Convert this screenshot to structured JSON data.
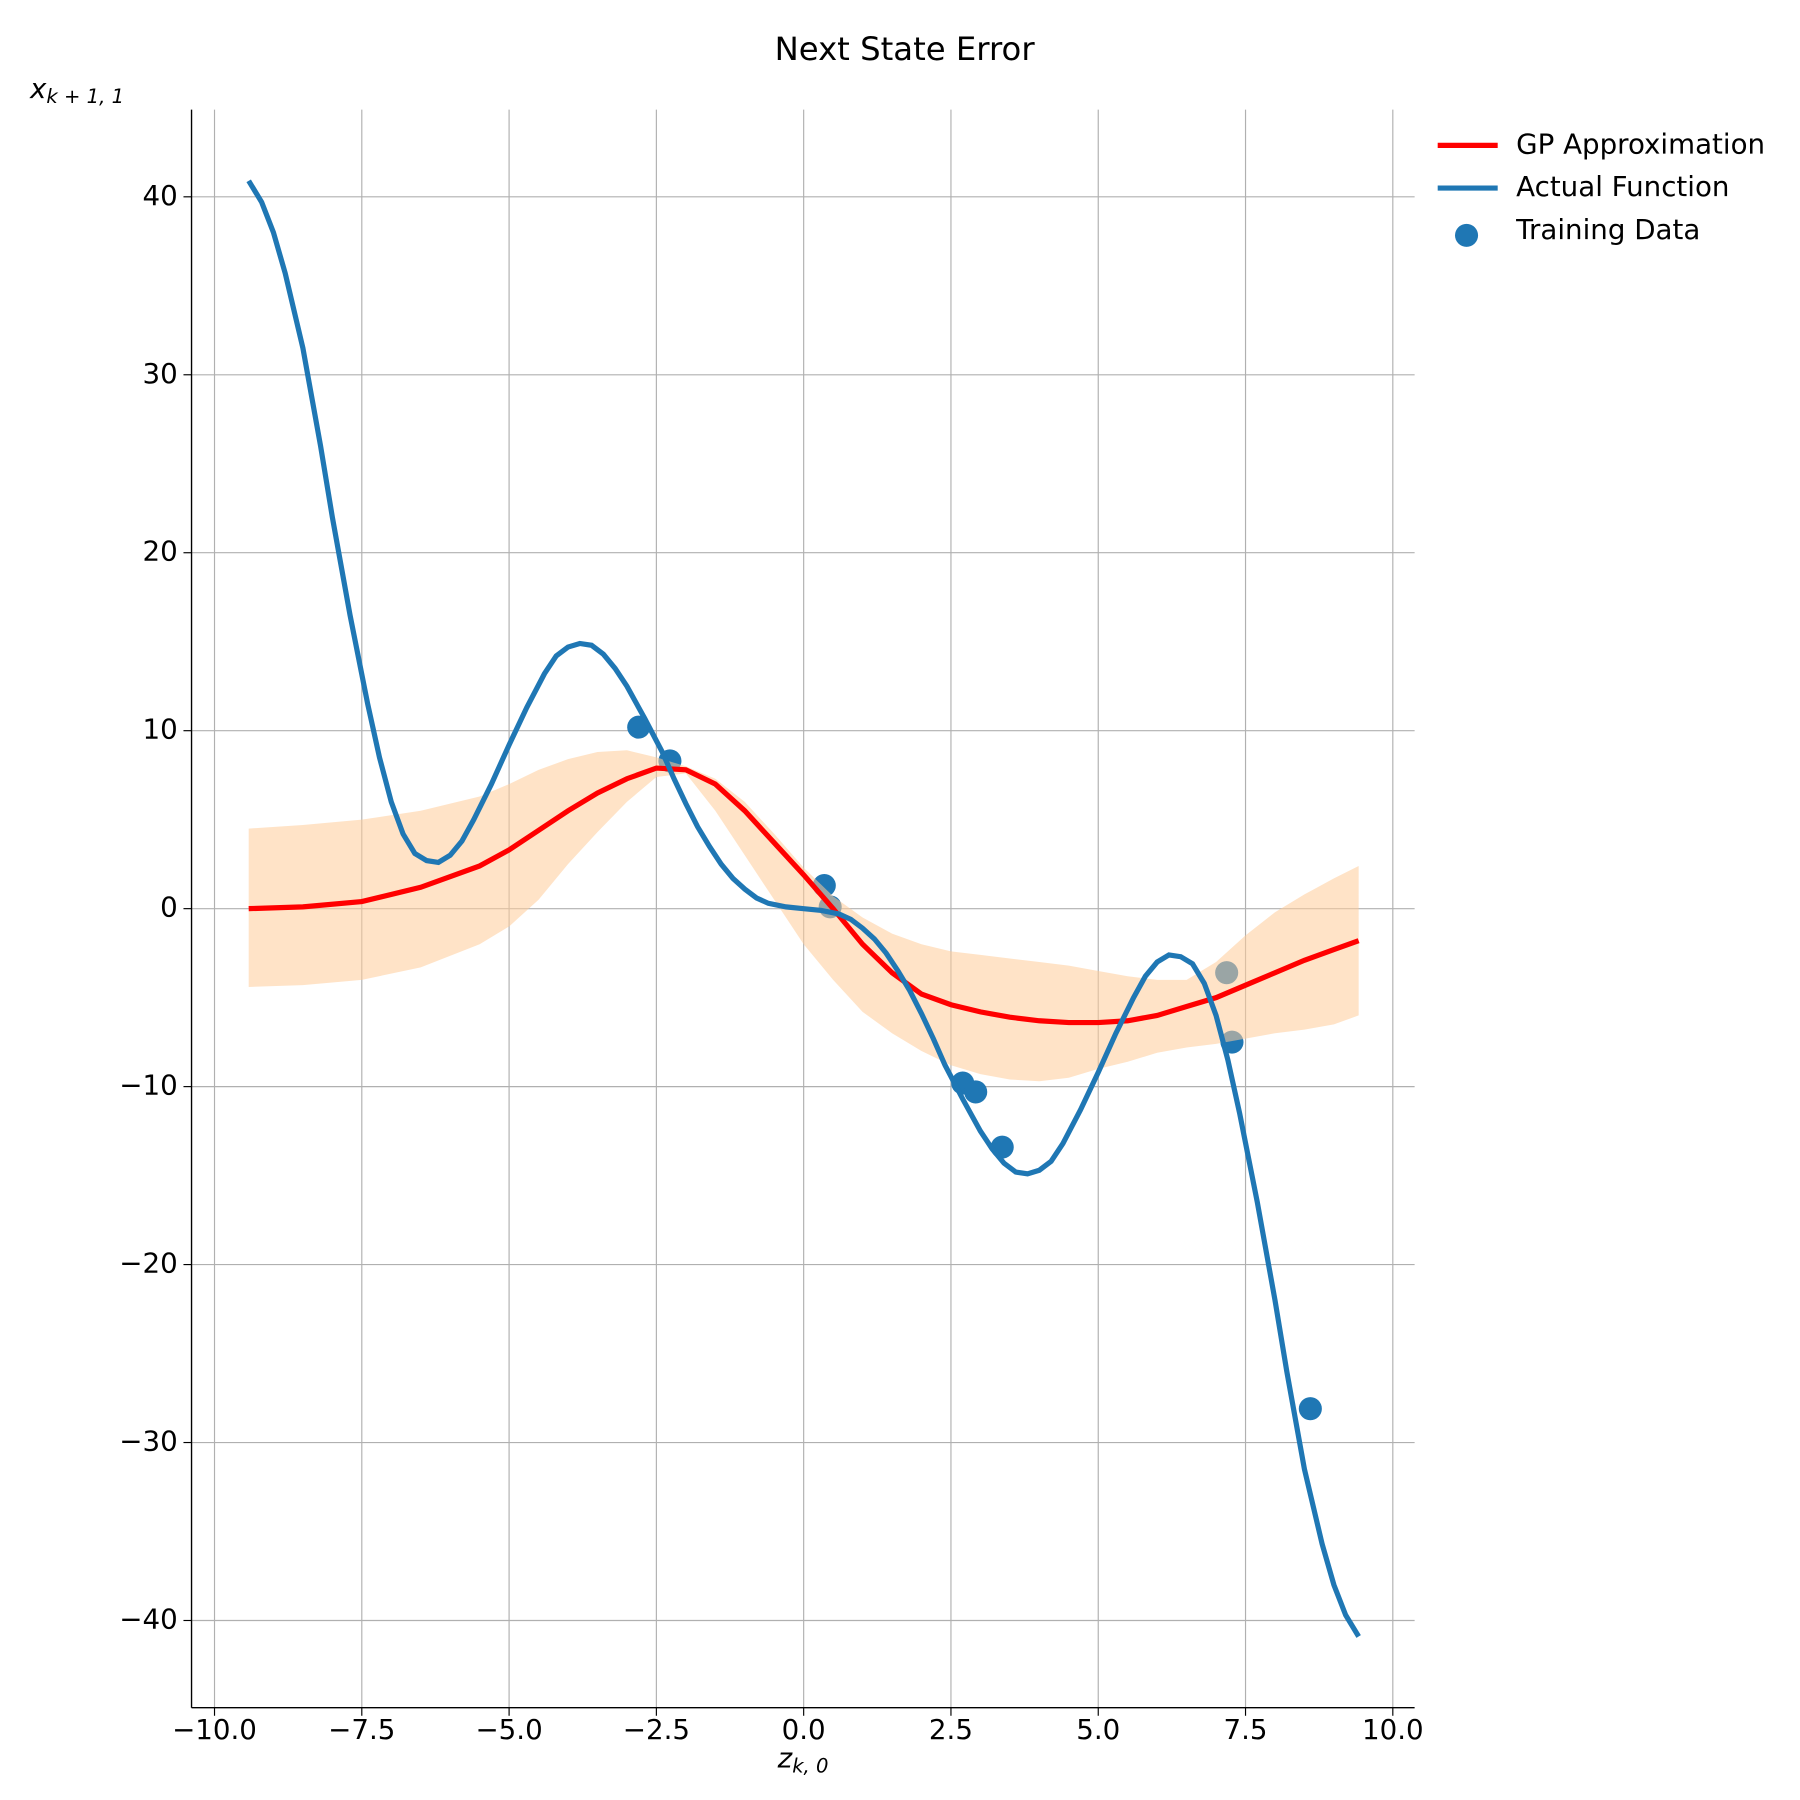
{
  "chart_data": {
    "type": "line",
    "title": "Next State Error",
    "xlabel": {
      "base": "z",
      "sub": "k, 0"
    },
    "ylabel": {
      "base": "x",
      "sub": "k + 1, 1"
    },
    "xlim": [
      -10.39,
      10.37
    ],
    "ylim": [
      -44.9,
      44.9
    ],
    "xticks": [
      {
        "value": -10,
        "label": "−10.0"
      },
      {
        "value": -7.5,
        "label": "−7.5"
      },
      {
        "value": -5,
        "label": "−5.0"
      },
      {
        "value": -2.5,
        "label": "−2.5"
      },
      {
        "value": 0,
        "label": "0.0"
      },
      {
        "value": 2.5,
        "label": "2.5"
      },
      {
        "value": 5,
        "label": "5.0"
      },
      {
        "value": 7.5,
        "label": "7.5"
      },
      {
        "value": 10,
        "label": "10.0"
      }
    ],
    "yticks": [
      {
        "value": -40,
        "label": "−40"
      },
      {
        "value": -30,
        "label": "−30"
      },
      {
        "value": -20,
        "label": "−20"
      },
      {
        "value": -10,
        "label": "−10"
      },
      0,
      10,
      20,
      30,
      40
    ],
    "grid": true,
    "legend": "outside-upper-right",
    "series": [
      {
        "name": "GP Approximation",
        "kind": "line",
        "color": "#ff0000",
        "band_color": "#ffcc99",
        "x": [
          -9.42,
          -8.5,
          -7.5,
          -6.5,
          -5.5,
          -5,
          -4.5,
          -4,
          -3.5,
          -3,
          -2.5,
          -2,
          -1.5,
          -1,
          -0.5,
          0,
          0.5,
          1,
          1.5,
          2,
          2.5,
          3,
          3.5,
          4,
          4.5,
          5,
          5.5,
          6,
          6.5,
          7,
          7.5,
          8,
          8.5,
          9,
          9.42
        ],
        "values": [
          0,
          0.1,
          0.4,
          1.2,
          2.4,
          3.3,
          4.4,
          5.5,
          6.5,
          7.3,
          7.9,
          7.8,
          7,
          5.5,
          3.7,
          1.9,
          0,
          -2,
          -3.6,
          -4.8,
          -5.4,
          -5.8,
          -6.1,
          -6.3,
          -6.4,
          -6.4,
          -6.3,
          -6,
          -5.5,
          -5,
          -4.3,
          -3.6,
          -2.9,
          -2.3,
          -1.8
        ],
        "upper": [
          4.5,
          4.7,
          5,
          5.5,
          6.3,
          7,
          7.8,
          8.4,
          8.8,
          8.9,
          8.5,
          8,
          7.3,
          6,
          4.2,
          2.3,
          0.7,
          -0.5,
          -1.4,
          -2,
          -2.4,
          -2.6,
          -2.8,
          -3,
          -3.2,
          -3.5,
          -3.8,
          -4,
          -4,
          -3,
          -1.5,
          -0.2,
          0.8,
          1.7,
          2.4
        ],
        "lower": [
          -4.4,
          -4.3,
          -4,
          -3.3,
          -2,
          -1,
          0.5,
          2.5,
          4.3,
          6,
          7.4,
          7.6,
          5.5,
          3,
          0.5,
          -2,
          -4,
          -5.8,
          -7,
          -8,
          -8.8,
          -9.3,
          -9.6,
          -9.7,
          -9.5,
          -9,
          -8.6,
          -8.1,
          -7.8,
          -7.6,
          -7.3,
          -7,
          -6.8,
          -6.5,
          -6
        ]
      },
      {
        "name": "Actual Function",
        "kind": "line",
        "color": "#1f77b4",
        "x": [
          -9.42,
          -9.2,
          -9,
          -8.8,
          -8.5,
          -8.2,
          -8,
          -7.7,
          -7.4,
          -7.2,
          -7,
          -6.8,
          -6.6,
          -6.4,
          -6.2,
          -6,
          -5.8,
          -5.6,
          -5.3,
          -5,
          -4.7,
          -4.4,
          -4.2,
          -4,
          -3.8,
          -3.6,
          -3.4,
          -3.2,
          -3,
          -2.7,
          -2.4,
          -2.2,
          -2,
          -1.8,
          -1.6,
          -1.4,
          -1.2,
          -1,
          -0.8,
          -0.6,
          -0.3,
          0,
          0.3,
          0.6,
          0.8,
          1,
          1.2,
          1.4,
          1.6,
          1.8,
          2,
          2.2,
          2.4,
          2.7,
          3,
          3.2,
          3.4,
          3.6,
          3.8,
          4,
          4.2,
          4.4,
          4.7,
          5,
          5.3,
          5.6,
          5.8,
          6,
          6.2,
          6.4,
          6.6,
          6.8,
          7,
          7.2,
          7.4,
          7.7,
          8,
          8.2,
          8.5,
          8.8,
          9,
          9.2,
          9.42
        ],
        "values": [
          40.9,
          39.7,
          38,
          35.7,
          31.5,
          26,
          22,
          16.5,
          11.5,
          8.5,
          6,
          4.2,
          3.1,
          2.7,
          2.6,
          3,
          3.8,
          5,
          7,
          9.2,
          11.3,
          13.2,
          14.2,
          14.7,
          14.9,
          14.8,
          14.3,
          13.5,
          12.5,
          10.7,
          8.8,
          7.3,
          5.9,
          4.6,
          3.5,
          2.5,
          1.7,
          1.1,
          0.6,
          0.3,
          0.1,
          0,
          -0.1,
          -0.3,
          -0.6,
          -1.1,
          -1.7,
          -2.5,
          -3.5,
          -4.6,
          -5.9,
          -7.3,
          -8.8,
          -10.7,
          -12.5,
          -13.5,
          -14.3,
          -14.8,
          -14.9,
          -14.7,
          -14.2,
          -13.2,
          -11.3,
          -9.2,
          -7,
          -5,
          -3.8,
          -3,
          -2.6,
          -2.7,
          -3.1,
          -4.2,
          -6,
          -8.5,
          -11.5,
          -16.5,
          -22,
          -26,
          -31.5,
          -35.7,
          -38,
          -39.7,
          -40.9
        ]
      },
      {
        "name": "Training Data",
        "kind": "scatter",
        "color": "#1f77b4",
        "x": [
          -2.8,
          -2.27,
          0.35,
          0.45,
          2.7,
          2.92,
          3.37,
          7.18,
          7.27,
          8.6
        ],
        "values": [
          10.2,
          8.3,
          1.3,
          0.1,
          -9.8,
          -10.3,
          -13.4,
          -3.6,
          -7.5,
          -28.1
        ]
      }
    ]
  }
}
